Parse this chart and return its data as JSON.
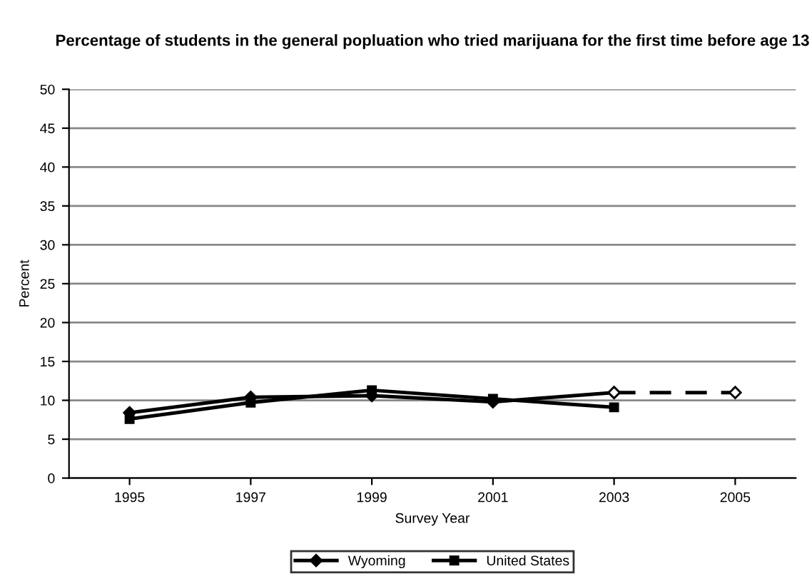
{
  "chart_data": {
    "type": "line",
    "title": "Percentage of students in the general popluation who tried marijuana for the first time before age 13",
    "xlabel": "Survey Year",
    "ylabel": "Percent",
    "categories": [
      "1995",
      "1997",
      "1999",
      "2001",
      "2003",
      "2005"
    ],
    "series": [
      {
        "name": "Wyoming",
        "color": "#000000",
        "marker": "diamond",
        "line_style": "solid",
        "values": [
          8.4,
          10.4,
          10.6,
          9.8,
          11.0,
          null
        ]
      },
      {
        "name": "United States",
        "color": "#000000",
        "marker": "square",
        "line_style": "solid",
        "values": [
          7.6,
          9.7,
          11.3,
          10.2,
          9.1,
          null
        ]
      },
      {
        "color": "#000000",
        "marker": "diamond",
        "line_style": "dashed",
        "values": [
          null,
          null,
          null,
          null,
          11.0,
          11.0
        ]
      }
    ],
    "ylim": [
      0,
      50
    ],
    "yticks": [
      0,
      5,
      10,
      15,
      20,
      25,
      30,
      35,
      40,
      45,
      50
    ],
    "grid": "y",
    "legend": "bottom"
  }
}
